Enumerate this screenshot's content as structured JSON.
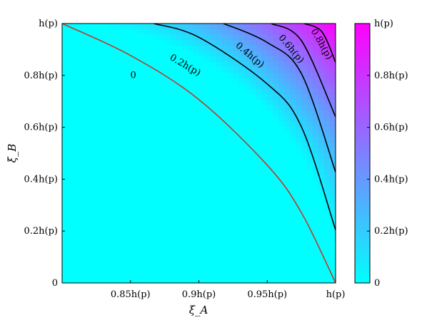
{
  "chart_data": {
    "type": "heatmap",
    "title": "",
    "xlabel": "ξ_A",
    "ylabel": "ξ_B",
    "xlim": [
      0.8,
      1.0
    ],
    "ylim": [
      0.0,
      1.0
    ],
    "x_ticks": [
      {
        "value": 0.85,
        "label": "0.85h(p)"
      },
      {
        "value": 0.9,
        "label": "0.9h(p)"
      },
      {
        "value": 0.95,
        "label": "0.95h(p)"
      },
      {
        "value": 1.0,
        "label": "h(p)"
      }
    ],
    "y_ticks": [
      {
        "value": 0.0,
        "label": "0"
      },
      {
        "value": 0.2,
        "label": "0.2h(p)"
      },
      {
        "value": 0.4,
        "label": "0.4h(p)"
      },
      {
        "value": 0.6,
        "label": "0.6h(p)"
      },
      {
        "value": 0.8,
        "label": "0.8h(p)"
      },
      {
        "value": 1.0,
        "label": "h(p)"
      }
    ],
    "colorbar": {
      "range": [
        0.0,
        1.0
      ],
      "low_color": "#00ffff",
      "high_color": "#ff00ff",
      "ticks": [
        {
          "value": 0.0,
          "label": "0"
        },
        {
          "value": 0.2,
          "label": "0.2h(p)"
        },
        {
          "value": 0.4,
          "label": "0.4h(p)"
        },
        {
          "value": 0.6,
          "label": "0.6h(p)"
        },
        {
          "value": 0.8,
          "label": "0.8h(p)"
        },
        {
          "value": 1.0,
          "label": "h(p)"
        }
      ]
    },
    "contours": [
      {
        "level": 0.0,
        "label": "0",
        "color": "#c0392b",
        "points": [
          [
            0.8,
            1.0
          ],
          [
            0.85,
            0.877
          ],
          [
            0.9,
            0.707
          ],
          [
            0.95,
            0.454
          ],
          [
            0.975,
            0.271
          ],
          [
            1.0,
            0.0
          ]
        ]
      },
      {
        "level": 0.2,
        "label": "0.2h(p)",
        "color": "#000000",
        "points": [
          [
            0.867,
            1.0
          ],
          [
            0.9,
            0.947
          ],
          [
            0.95,
            0.767
          ],
          [
            0.975,
            0.602
          ],
          [
            1.0,
            0.204
          ]
        ]
      },
      {
        "level": 0.4,
        "label": "0.4h(p)",
        "color": "#000000",
        "points": [
          [
            0.918,
            1.0
          ],
          [
            0.95,
            0.927
          ],
          [
            0.975,
            0.807
          ],
          [
            1.0,
            0.427
          ]
        ]
      },
      {
        "level": 0.6,
        "label": "0.6h(p)",
        "color": "#000000",
        "points": [
          [
            0.953,
            1.0
          ],
          [
            0.975,
            0.934
          ],
          [
            1.0,
            0.64
          ]
        ]
      },
      {
        "level": 0.8,
        "label": "0.8h(p)",
        "color": "#000000",
        "points": [
          [
            0.977,
            1.0
          ],
          [
            0.99,
            0.968
          ],
          [
            1.0,
            0.85
          ]
        ]
      }
    ],
    "contour_labels": [
      {
        "text": "0",
        "x": 0.852,
        "y": 0.79,
        "angle": 0
      },
      {
        "text": "0.2h(p)",
        "x": 0.889,
        "y": 0.83,
        "angle": 30
      },
      {
        "text": "0.4h(p)",
        "x": 0.936,
        "y": 0.87,
        "angle": 40
      },
      {
        "text": "0.6h(p)",
        "x": 0.966,
        "y": 0.895,
        "angle": 50
      },
      {
        "text": "0.8h(p)",
        "x": 0.988,
        "y": 0.915,
        "angle": 60
      }
    ]
  }
}
